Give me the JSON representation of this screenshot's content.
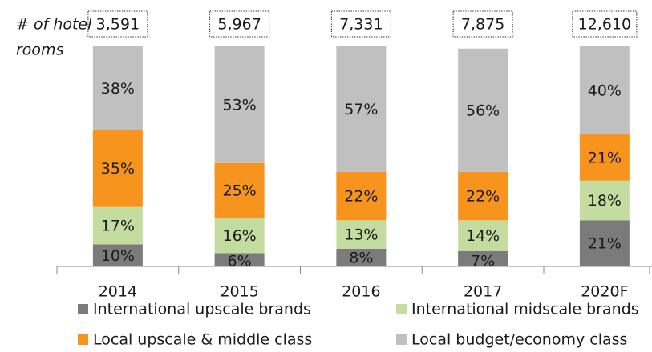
{
  "chart_data": {
    "type": "stacked_bar",
    "annotation": [
      "# of hotel",
      "rooms"
    ],
    "categories": [
      "2014",
      "2015",
      "2016",
      "2017",
      "2020F"
    ],
    "ylim": [
      0,
      100
    ],
    "series": [
      {
        "name": "International upscale brands",
        "color": "#7b7b7b",
        "values": [
          10,
          6,
          8,
          7,
          21
        ],
        "value_labels": [
          "10%",
          "6%",
          "8%",
          "7%",
          "21%"
        ]
      },
      {
        "name": "International midscale brands",
        "color": "#c4dca0",
        "values": [
          17,
          16,
          13,
          14,
          18
        ],
        "value_labels": [
          "17%",
          "16%",
          "13%",
          "14%",
          "18%"
        ]
      },
      {
        "name": "Local upscale & middle class",
        "color": "#f7941d",
        "values": [
          35,
          25,
          22,
          22,
          21
        ],
        "value_labels": [
          "35%",
          "25%",
          "22%",
          "22%",
          "21%"
        ]
      },
      {
        "name": "Local budget/economy class",
        "color": "#c0c0c0",
        "values": [
          38,
          53,
          57,
          56,
          40
        ],
        "value_labels": [
          "38%",
          "53%",
          "57%",
          "56%",
          "40%"
        ]
      }
    ],
    "totals": {
      "values": [
        3591,
        5967,
        7331,
        7875,
        12610
      ],
      "value_labels": [
        "3,591",
        "5,967",
        "7,331",
        "7,875",
        "12,610"
      ]
    }
  }
}
